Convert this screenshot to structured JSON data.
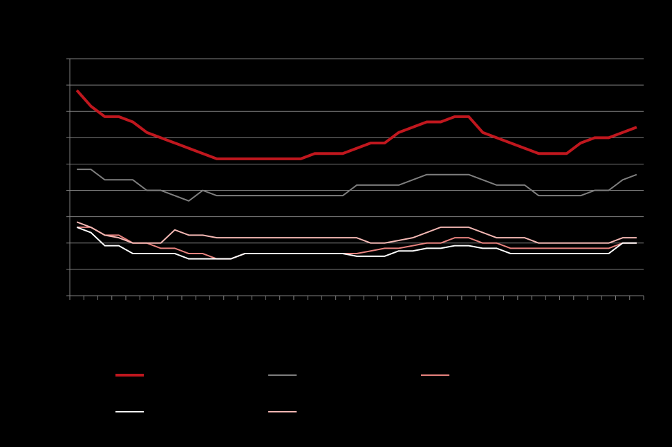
{
  "chart_data": {
    "type": "line",
    "categories": [
      null,
      null,
      null,
      null,
      null,
      null,
      null,
      null,
      null,
      null,
      null,
      null,
      null,
      null,
      null,
      null,
      null,
      null,
      null,
      null,
      null,
      null,
      null,
      null,
      null,
      null,
      null,
      null,
      null,
      null,
      null,
      null,
      null,
      null,
      null,
      null,
      null,
      null,
      null,
      null,
      null
    ],
    "series": [
      {
        "color": "#c0171e",
        "values": [
          7.8,
          7.2,
          6.8,
          6.8,
          6.6,
          6.2,
          6.0,
          5.8,
          5.6,
          5.4,
          5.2,
          5.2,
          5.2,
          5.2,
          5.2,
          5.2,
          5.2,
          5.4,
          5.4,
          5.4,
          5.6,
          5.8,
          5.8,
          6.2,
          6.4,
          6.6,
          6.6,
          6.8,
          6.8,
          6.2,
          6.0,
          5.8,
          5.6,
          5.4,
          5.4,
          5.4,
          5.8,
          6.0,
          6.0,
          6.2,
          6.4
        ]
      },
      {
        "color": "#7f7f7f",
        "values": [
          4.8,
          4.8,
          4.4,
          4.4,
          4.4,
          4.0,
          4.0,
          3.8,
          3.6,
          4.0,
          3.8,
          3.8,
          3.8,
          3.8,
          3.8,
          3.8,
          3.8,
          3.8,
          3.8,
          3.8,
          4.2,
          4.2,
          4.2,
          4.2,
          4.4,
          4.6,
          4.6,
          4.6,
          4.6,
          4.4,
          4.2,
          4.2,
          4.2,
          3.8,
          3.8,
          3.8,
          3.8,
          4.0,
          4.0,
          4.4,
          4.6
        ]
      },
      {
        "color": "#e8837f",
        "values": [
          2.6,
          2.6,
          2.3,
          2.3,
          2.0,
          2.0,
          1.8,
          1.8,
          1.6,
          1.6,
          1.4,
          1.4,
          1.6,
          1.6,
          1.6,
          1.6,
          1.6,
          1.6,
          1.6,
          1.6,
          1.6,
          1.7,
          1.8,
          1.8,
          1.9,
          2.0,
          2.0,
          2.2,
          2.2,
          2.0,
          2.0,
          1.8,
          1.8,
          1.8,
          1.8,
          1.8,
          1.8,
          1.8,
          1.8,
          2.0,
          2.0
        ]
      },
      {
        "color": "#ffffff",
        "values": [
          2.6,
          2.4,
          1.9,
          1.9,
          1.6,
          1.6,
          1.6,
          1.6,
          1.4,
          1.4,
          1.4,
          1.4,
          1.6,
          1.6,
          1.6,
          1.6,
          1.6,
          1.6,
          1.6,
          1.6,
          1.5,
          1.5,
          1.5,
          1.7,
          1.7,
          1.8,
          1.8,
          1.9,
          1.9,
          1.8,
          1.8,
          1.6,
          1.6,
          1.6,
          1.6,
          1.6,
          1.6,
          1.6,
          1.6,
          2.0,
          2.0
        ]
      },
      {
        "color": "#f4b8b4",
        "values": [
          2.8,
          2.6,
          2.3,
          2.2,
          2.0,
          2.0,
          2.0,
          2.5,
          2.3,
          2.3,
          2.2,
          2.2,
          2.2,
          2.2,
          2.2,
          2.2,
          2.2,
          2.2,
          2.2,
          2.2,
          2.2,
          2.0,
          2.0,
          2.1,
          2.2,
          2.4,
          2.6,
          2.6,
          2.6,
          2.4,
          2.2,
          2.2,
          2.2,
          2.0,
          2.0,
          2.0,
          2.0,
          2.0,
          2.0,
          2.2,
          2.2
        ]
      }
    ],
    "ylim": [
      0,
      9
    ],
    "yticks": [
      0,
      1,
      2,
      3,
      4,
      5,
      6,
      7,
      8,
      9
    ],
    "grid": true
  }
}
